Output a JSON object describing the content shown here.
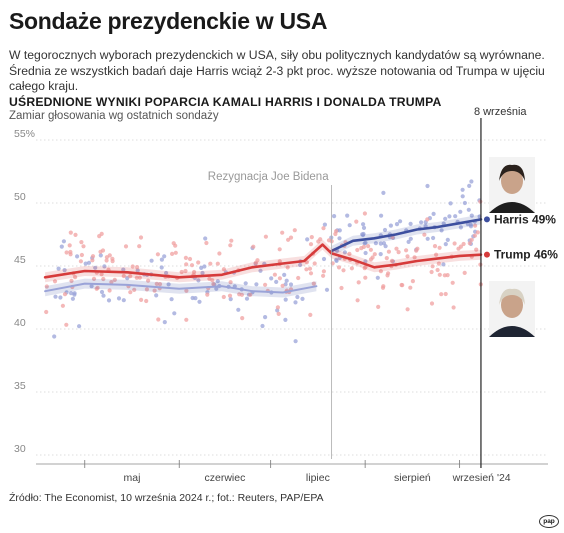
{
  "header": {
    "title": "Sondaże prezydenckie w USA",
    "lead": "W tegorocznych wyborach prezydenckich w USA, siły obu politycznych kandydatów są wyrównane. Średnia ze wszystkich badań daje Harris wciąż 2-3 pkt proc. wyższe notowania od Trumpa w ujęciu całego kraju.",
    "subtitle": "UŚREDNIONE WYNIKI POPARCIA KAMALI HARRIS I DONALDA TRUMPA",
    "caption": "Zamiar głosowania wg ostatnich sondaży"
  },
  "footer": {
    "source": "Źródło: The Economist, 10 września 2024 r.; fot.: Reuters, PAP/EPA",
    "logo": "pap"
  },
  "chart_data": {
    "type": "line",
    "title": "UŚREDNIONE WYNIKI POPARCIA KAMALI HARRIS I DONALDA TRUMPA",
    "subtitle": "Zamiar głosowania wg ostatnich sondaży",
    "y_axis": {
      "min": 30,
      "max": 55,
      "ticks": [
        30,
        35,
        40,
        45,
        50,
        55
      ],
      "top_tick_label": "55%",
      "grid": true
    },
    "x_axis": {
      "start": "2024-04-15",
      "end": "2024-09-30",
      "ticks": [
        "2024-05-01",
        "2024-06-01",
        "2024-07-01",
        "2024-08-01",
        "2024-09-01"
      ],
      "tick_labels": [
        "maj",
        "czerwiec",
        "lipiec",
        "sierpień",
        "wrzesień '24"
      ]
    },
    "annotations": [
      {
        "date": "2024-07-21",
        "label": "Rezygnacja Joe Bidena"
      },
      {
        "date": "2024-09-08",
        "label": "8 września"
      }
    ],
    "series": [
      {
        "name": "Harris",
        "end_label": "Harris 49%",
        "color": "#3d4f9f",
        "dot_color": "#9aa3d8",
        "values": [
          [
            "2024-04-18",
            43.0
          ],
          [
            "2024-05-01",
            43.6
          ],
          [
            "2024-05-15",
            43.5
          ],
          [
            "2024-06-01",
            43.2
          ],
          [
            "2024-06-15",
            43.4
          ],
          [
            "2024-06-25",
            43.0
          ],
          [
            "2024-07-05",
            42.9
          ],
          [
            "2024-07-16",
            43.4
          ],
          [
            "2024-07-21",
            46.2
          ],
          [
            "2024-07-28",
            47.0
          ],
          [
            "2024-08-04",
            47.2
          ],
          [
            "2024-08-11",
            47.5
          ],
          [
            "2024-08-18",
            47.9
          ],
          [
            "2024-08-25",
            48.1
          ],
          [
            "2024-09-01",
            48.4
          ],
          [
            "2024-09-08",
            48.7
          ]
        ]
      },
      {
        "name": "Trump",
        "end_label": "Trump 46%",
        "color": "#d63b3b",
        "dot_color": "#f0a0a0",
        "values": [
          [
            "2024-04-18",
            44.1
          ],
          [
            "2024-05-01",
            44.6
          ],
          [
            "2024-05-15",
            44.5
          ],
          [
            "2024-06-01",
            44.1
          ],
          [
            "2024-06-15",
            44.3
          ],
          [
            "2024-06-25",
            44.9
          ],
          [
            "2024-07-05",
            45.2
          ],
          [
            "2024-07-12",
            45.4
          ],
          [
            "2024-07-18",
            46.7
          ],
          [
            "2024-07-21",
            46.0
          ],
          [
            "2024-07-28",
            45.5
          ],
          [
            "2024-08-04",
            44.9
          ],
          [
            "2024-08-11",
            45.1
          ],
          [
            "2024-08-18",
            45.4
          ],
          [
            "2024-08-25",
            45.6
          ],
          [
            "2024-09-01",
            45.8
          ],
          [
            "2024-09-08",
            45.9
          ]
        ]
      }
    ],
    "photos": [
      "Kamala Harris",
      "Donald Trump"
    ]
  }
}
